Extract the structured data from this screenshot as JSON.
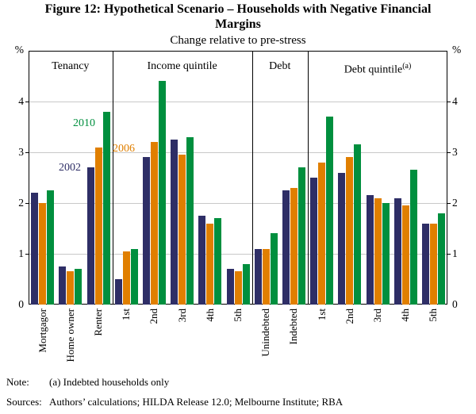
{
  "figure": {
    "title_line1": "Figure 12: Hypothetical Scenario – Households with Negative Financial",
    "title_line2": "Margins",
    "subtitle": "Change relative to pre-stress",
    "note_label": "Note:",
    "note_text": "(a) Indebted households only",
    "sources_label": "Sources:",
    "sources_text": "Authors’ calculations; HILDA Release 12.0; Melbourne Institute; RBA"
  },
  "chart_data": {
    "type": "bar",
    "unit_left": "%",
    "unit_right": "%",
    "ylim": [
      0,
      5
    ],
    "yticks": [
      0,
      1,
      2,
      3,
      4
    ],
    "grid": true,
    "grid_color": "#c8c8c8",
    "series_order": [
      "2002",
      "2006",
      "2010"
    ],
    "series_colors": {
      "2002": "#2e2e66",
      "2006": "#e07f00",
      "2010": "#008f3e"
    },
    "panels": [
      {
        "label": "Tenancy",
        "sup": "",
        "categories": [
          "Mortgagor",
          "Home owner",
          "Renter"
        ],
        "series": [
          {
            "name": "2002",
            "values": [
              2.2,
              0.75,
              2.7
            ]
          },
          {
            "name": "2006",
            "values": [
              2.0,
              0.65,
              3.1
            ]
          },
          {
            "name": "2010",
            "values": [
              2.25,
              0.7,
              3.8
            ]
          }
        ]
      },
      {
        "label": "Income quintile",
        "sup": "",
        "categories": [
          "1st",
          "2nd",
          "3rd",
          "4th",
          "5th"
        ],
        "series": [
          {
            "name": "2002",
            "values": [
              0.5,
              2.9,
              3.25,
              1.75,
              0.7
            ]
          },
          {
            "name": "2006",
            "values": [
              1.05,
              3.2,
              2.95,
              1.6,
              0.65
            ]
          },
          {
            "name": "2010",
            "values": [
              1.1,
              4.4,
              3.3,
              1.7,
              0.8
            ]
          }
        ]
      },
      {
        "label": "Debt",
        "sup": "",
        "categories": [
          "Unindebted",
          "Indebted"
        ],
        "series": [
          {
            "name": "2002",
            "values": [
              1.1,
              2.25
            ]
          },
          {
            "name": "2006",
            "values": [
              1.1,
              2.3
            ]
          },
          {
            "name": "2010",
            "values": [
              1.4,
              2.7
            ]
          }
        ]
      },
      {
        "label": "Debt quintile",
        "sup": "(a)",
        "categories": [
          "1st",
          "2nd",
          "3rd",
          "4th",
          "5th"
        ],
        "series": [
          {
            "name": "2002",
            "values": [
              2.5,
              2.6,
              2.15,
              2.1,
              1.6
            ]
          },
          {
            "name": "2006",
            "values": [
              2.8,
              2.9,
              2.1,
              1.95,
              1.6
            ]
          },
          {
            "name": "2010",
            "values": [
              3.7,
              3.15,
              2.0,
              2.65,
              1.8
            ]
          }
        ]
      }
    ],
    "annotations": [
      {
        "text": "2010",
        "series": "2010",
        "x": 56,
        "y": 84
      },
      {
        "text": "2006",
        "series": "2006",
        "x": 106,
        "y": 116
      },
      {
        "text": "2002",
        "series": "2002",
        "x": 38,
        "y": 140
      }
    ]
  }
}
